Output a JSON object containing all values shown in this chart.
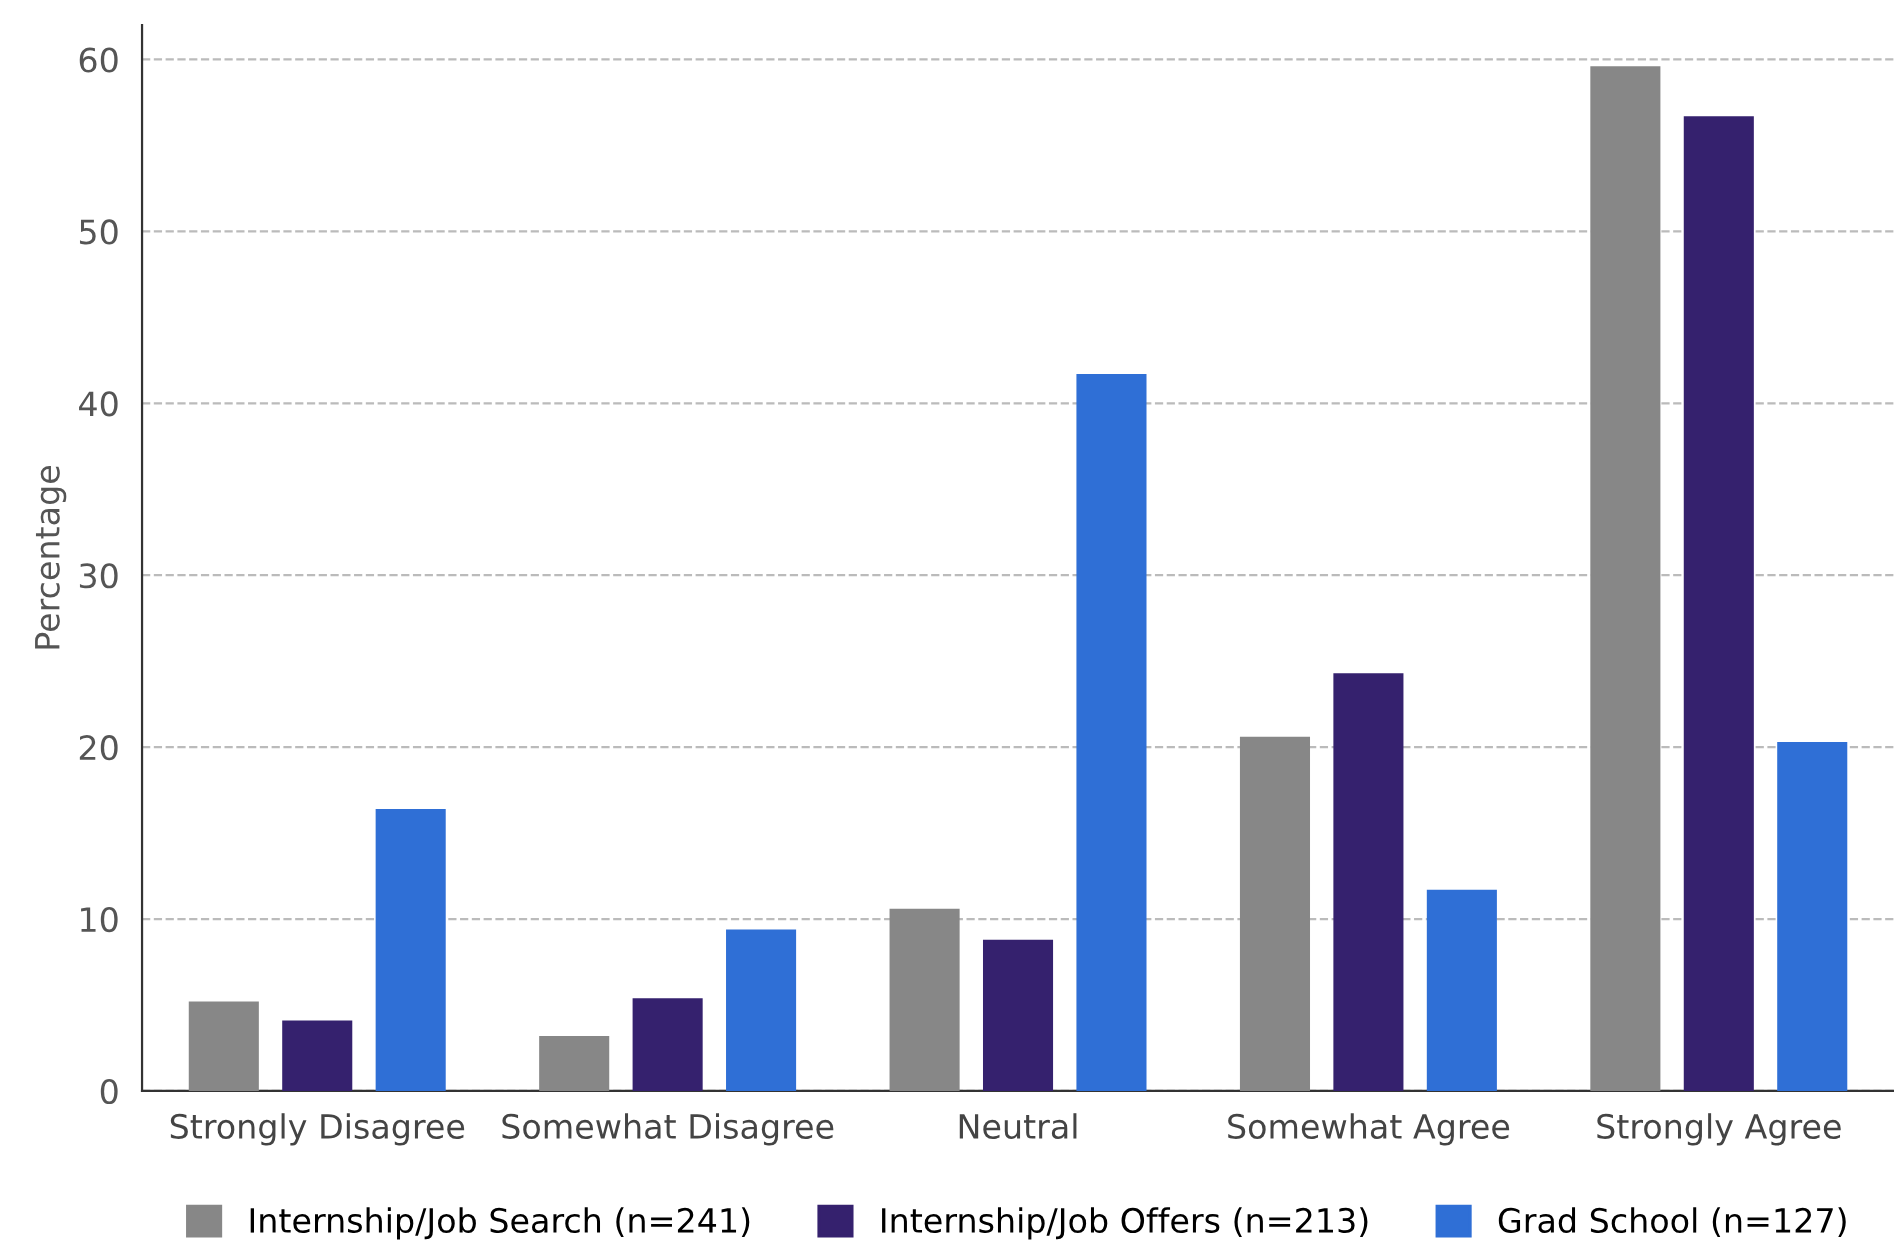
{
  "chart_data": {
    "type": "bar",
    "ylabel": "Percentage",
    "categories": [
      "Strongly Disagree",
      "Somewhat Disagree",
      "Neutral",
      "Somewhat Agree",
      "Strongly Agree"
    ],
    "series": [
      {
        "name": "Internship/Job Search (n=241)",
        "color": "#878787",
        "values": [
          5.2,
          3.2,
          10.6,
          20.6,
          59.6
        ]
      },
      {
        "name": "Internship/Job Offers (n=213)",
        "color": "#35216e",
        "values": [
          4.1,
          5.4,
          8.8,
          24.3,
          56.7
        ]
      },
      {
        "name": "Grad School (n=127)",
        "color": "#2f6fd6",
        "values": [
          16.4,
          9.4,
          41.7,
          11.7,
          20.3
        ]
      }
    ],
    "ylim": [
      0,
      62
    ],
    "yticks": [
      0,
      10,
      20,
      30,
      40,
      50,
      60
    ],
    "grid": "y",
    "legend": "bottom"
  }
}
